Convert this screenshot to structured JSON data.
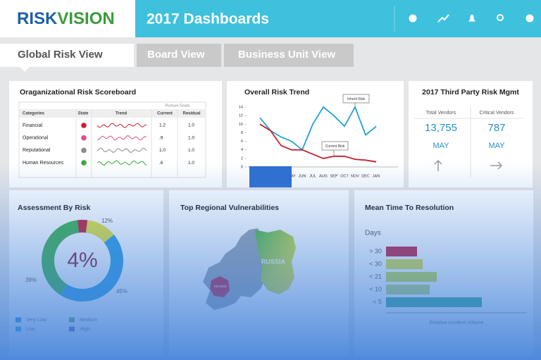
{
  "header": {
    "logo": [
      "RISK",
      "VISION"
    ],
    "title": "2017 Dashboards"
  },
  "tabs": [
    "Global Risk View",
    "Board View",
    "Business Unit View"
  ],
  "scoreboard": {
    "title": "Oraganizational Risk Scoreboard",
    "group_header": "Posture Goals",
    "columns": [
      "Categories",
      "State",
      "Trend",
      "Current",
      "Residual"
    ],
    "rows": [
      {
        "category": "Financial",
        "color": "#c8202e",
        "current": "1.2",
        "residual": "1.0"
      },
      {
        "category": "Operational",
        "color": "#e0508a",
        "current": ".9",
        "residual": "1.0"
      },
      {
        "category": "Reputational",
        "color": "#8c8c8c",
        "current": "1.0",
        "residual": "1.0"
      },
      {
        "category": "Human Resources",
        "color": "#3aa83a",
        "current": ".6",
        "residual": "1.0"
      }
    ]
  },
  "trend": {
    "title": "Overall Risk Trend",
    "categories": [
      null,
      null,
      null,
      "MAY",
      "JUN",
      "JUL",
      "AUG",
      "SEP",
      "OCT",
      "NOV",
      "DEC",
      "JAN"
    ],
    "ylim": [
      0,
      14.5
    ],
    "yticks": [
      0,
      2,
      4,
      6,
      8,
      10,
      12,
      14
    ],
    "series": [
      {
        "name": "Inherit Risk",
        "color": "#1ea3d9",
        "values": [
          11.5,
          8.5,
          7,
          6,
          4,
          10,
          14,
          12,
          9.5,
          14,
          7.5,
          9.5
        ]
      },
      {
        "name": "Current Risk",
        "color": "#c21f2f",
        "values": [
          10,
          8.5,
          5,
          4,
          4,
          3,
          2,
          2.5,
          2.5,
          1.8,
          1.6,
          1.2
        ]
      }
    ]
  },
  "third_party": {
    "title": "2017 Third Party Risk Mgmt",
    "columns": [
      {
        "label": "Total Vendors",
        "value": "13,755",
        "period": "MAY"
      },
      {
        "label": "Critical Vendors",
        "value": "787",
        "period": "MAY"
      }
    ]
  },
  "assessment": {
    "title": "Assessment By Risk",
    "values": [
      4,
      12,
      45,
      39
    ],
    "value_labels": [
      "4%",
      "12%",
      "45%",
      "39%"
    ],
    "colors": [
      "#c21f3a",
      "#e6e33a",
      "#2f9ee0",
      "#3fb24a"
    ],
    "legend": [
      {
        "name": "Very Low",
        "color": "#2f8fd8"
      },
      {
        "name": "Medium",
        "color": "#4caf50"
      },
      {
        "name": "Low",
        "color": "#2fa6d6"
      },
      {
        "name": "High",
        "color": "#7a4fb0"
      }
    ]
  },
  "regions": {
    "title": "Top Regional Vulnerabilities",
    "labels": [
      "RUSSIA",
      "FRANCE"
    ]
  },
  "resolution": {
    "title": "Mean Time To Resolution",
    "y_label": "Days",
    "x_label": "Relative Incident Volume",
    "categories": [
      "> 30",
      "< 30",
      "< 21",
      "< 10",
      "< 5"
    ],
    "values": [
      22,
      26,
      36,
      31,
      68
    ],
    "colors": [
      "#c41e3a",
      "#dfe03a",
      "#c9dc3e",
      "#bcd870",
      "#36a98a"
    ],
    "xlim": [
      0,
      100
    ]
  }
}
